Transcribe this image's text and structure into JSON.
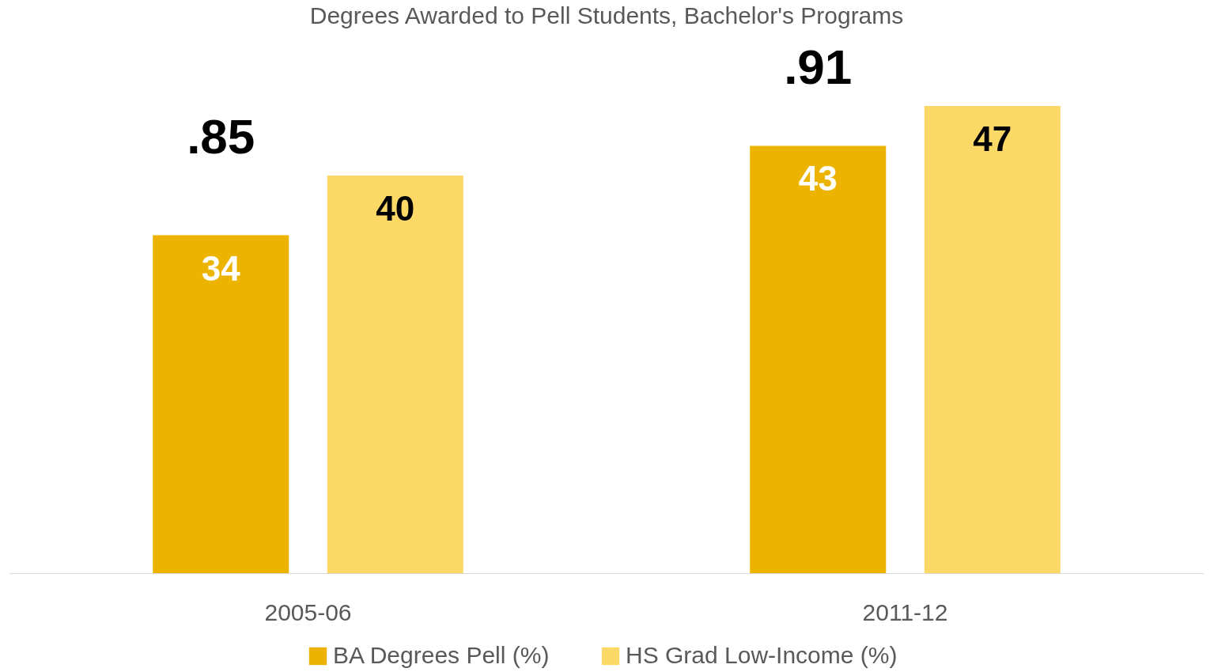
{
  "chart_data": {
    "type": "bar",
    "title": "Degrees Awarded to Pell Students, Bachelor's Programs",
    "categories": [
      "2005-06",
      "2011-12"
    ],
    "series": [
      {
        "name": "BA Degrees Pell (%)",
        "color": "#ecb400",
        "values": [
          34,
          43
        ]
      },
      {
        "name": "HS Grad Low-Income (%)",
        "color": "#fcd866",
        "values": [
          40,
          47
        ]
      }
    ],
    "annotations": [
      ".85",
      ".91"
    ],
    "data_labels": true,
    "legend": "bottom",
    "grid": false,
    "tick_labels": "x"
  }
}
